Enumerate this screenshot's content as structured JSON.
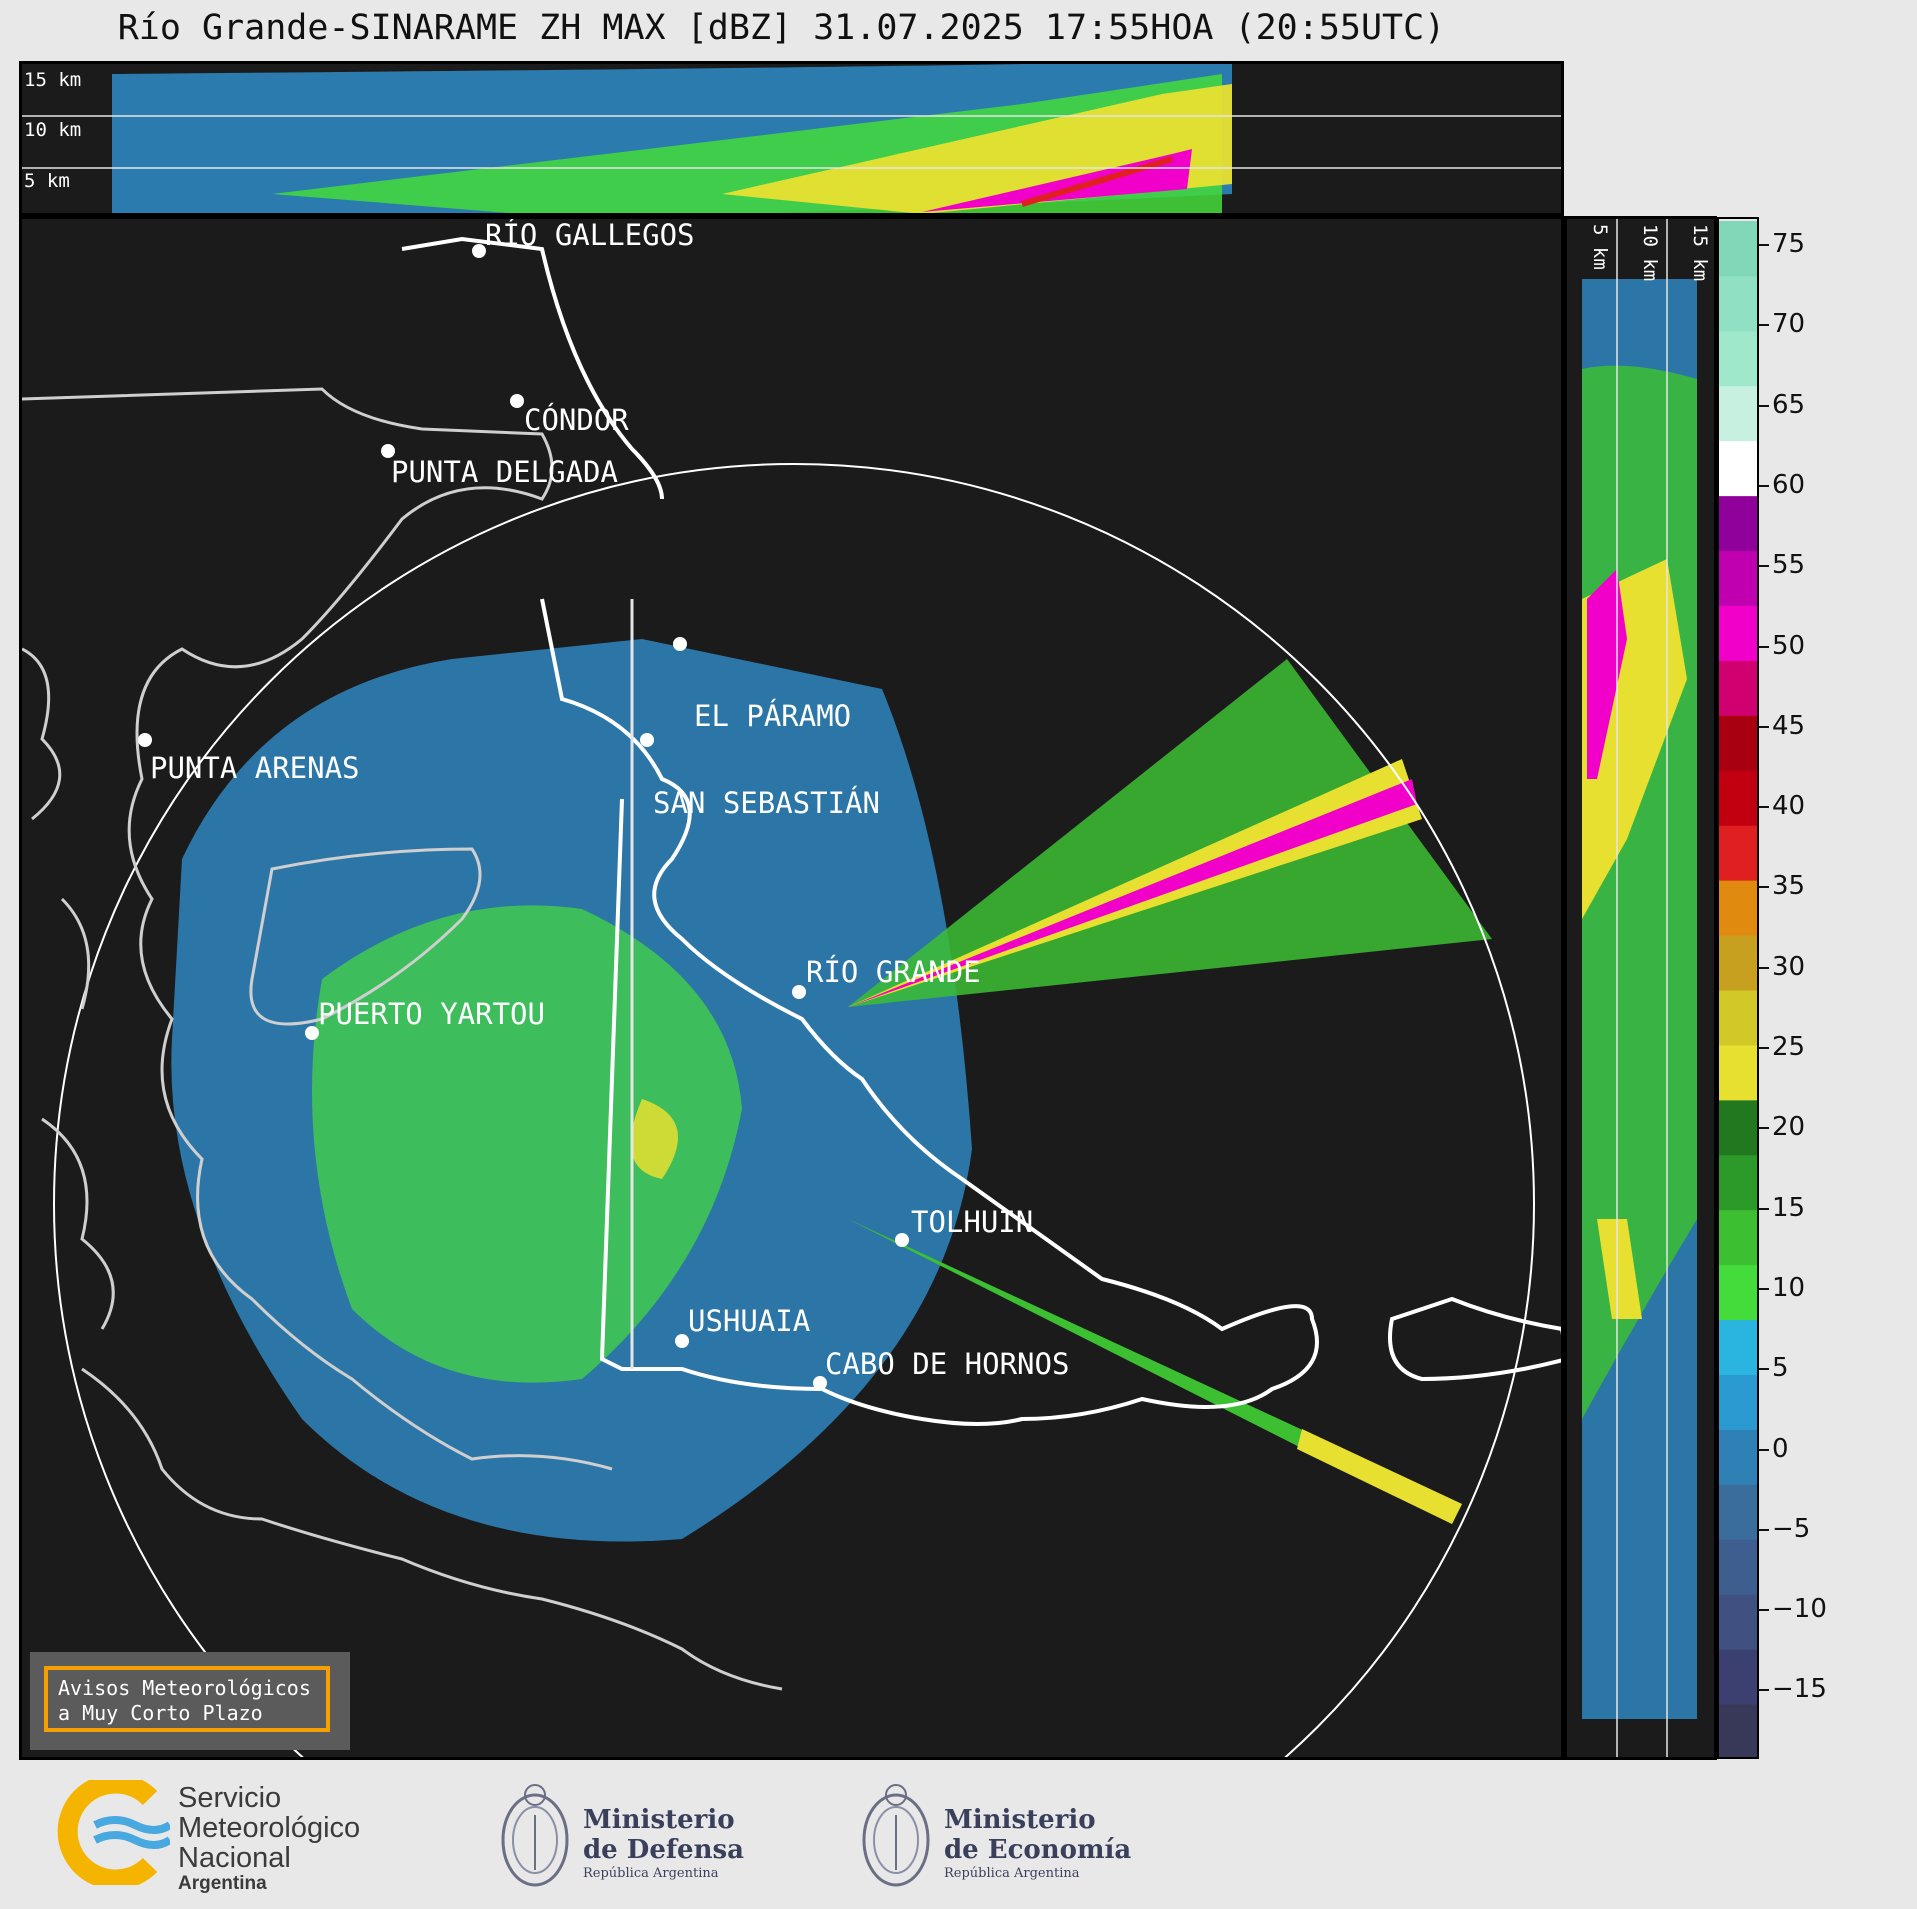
{
  "title": "Río Grande-SINARAME ZH MAX [dBZ] 31.07.2025 17:55HOA (20:55UTC)",
  "top_panel": {
    "height_labels": [
      "15 km",
      "10 km",
      "5 km"
    ]
  },
  "side_panel": {
    "height_labels": [
      "5 km",
      "10 km",
      "15 km"
    ]
  },
  "map": {
    "cities": [
      {
        "name": "RÍO GALLEGOS"
      },
      {
        "name": "CÓNDOR"
      },
      {
        "name": "PUNTA DELGADA"
      },
      {
        "name": "EL PÁRAMO"
      },
      {
        "name": "PUNTA ARENAS"
      },
      {
        "name": "SAN SEBASTIÁN"
      },
      {
        "name": "RÍO GRANDE"
      },
      {
        "name": "PUERTO YARTOU"
      },
      {
        "name": "TOLHUIN"
      },
      {
        "name": "USHUAIA"
      },
      {
        "name": "CABO DE HORNOS"
      }
    ]
  },
  "colorbar": {
    "unit": "dBZ",
    "ticks": [
      "75",
      "70",
      "65",
      "60",
      "55",
      "50",
      "45",
      "40",
      "35",
      "30",
      "25",
      "20",
      "15",
      "10",
      "5",
      "0",
      "−5",
      "−10",
      "−15"
    ],
    "colors": [
      "#383858",
      "#3c4070",
      "#405080",
      "#3d5e8e",
      "#3a6c9c",
      "#2f80b4",
      "#2a9ad0",
      "#2ab4e0",
      "#44dc3a",
      "#3cc032",
      "#2c9a28",
      "#22781e",
      "#e8e030",
      "#d2c828",
      "#c8a020",
      "#e08a10",
      "#e02020",
      "#c00010",
      "#a80010",
      "#d00070",
      "#f000c8",
      "#c000b0",
      "#90009a",
      "#ffffff",
      "#c8f0e0",
      "#a0e8cc",
      "#90e0c4",
      "#80d8b8"
    ]
  },
  "warning_box": {
    "line1": "Avisos Meteorológicos",
    "line2": "a Muy Corto Plazo"
  },
  "footer": {
    "smn": {
      "line1": "Servicio",
      "line2": "Meteorológico",
      "line3": "Nacional",
      "line4": "Argentina"
    },
    "defensa": {
      "line1": "Ministerio",
      "line2": "de Defensa",
      "line3": "República Argentina"
    },
    "economia": {
      "line1": "Ministerio",
      "line2": "de Economía",
      "line3": "República Argentina"
    }
  }
}
